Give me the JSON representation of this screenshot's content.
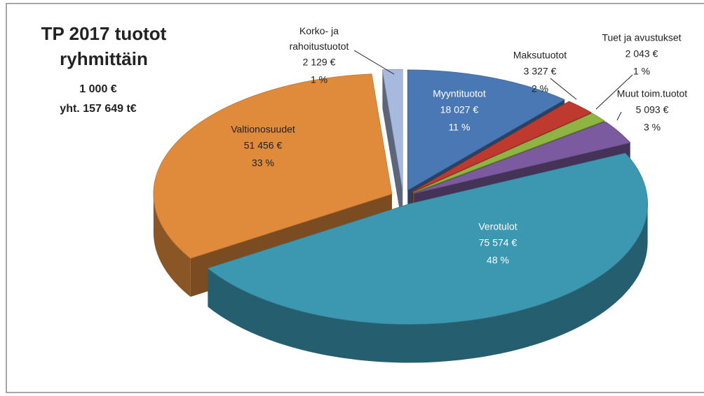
{
  "chart_data": {
    "type": "pie",
    "title_lines": [
      "TP 2017 tuotot",
      "ryhmittäin"
    ],
    "subtitle_lines": [
      "1 000 €",
      "yht. 157 649 t€"
    ],
    "categories": [
      "Myyntituotot",
      "Maksutuotot",
      "Tuet ja avustukset",
      "Muut toim.tuotot",
      "Verotulot",
      "Valtionosuudet",
      "Korko- ja rahoitustuotot"
    ],
    "values": [
      18027,
      3327,
      2043,
      5093,
      75574,
      51456,
      2129
    ],
    "value_labels": [
      "18 027 €",
      "3 327 €",
      "2 043 €",
      "5 093 €",
      "75 574 €",
      "51 456 €",
      "2 129 €"
    ],
    "percent_labels": [
      "11 %",
      "2 %",
      "1 %",
      "3 %",
      "48 %",
      "33 %",
      "1 %"
    ],
    "colors": [
      "#4a78b4",
      "#c0392f",
      "#8fb443",
      "#7b5a9f",
      "#3c98b1",
      "#e08a3c",
      "#a7badd"
    ]
  }
}
